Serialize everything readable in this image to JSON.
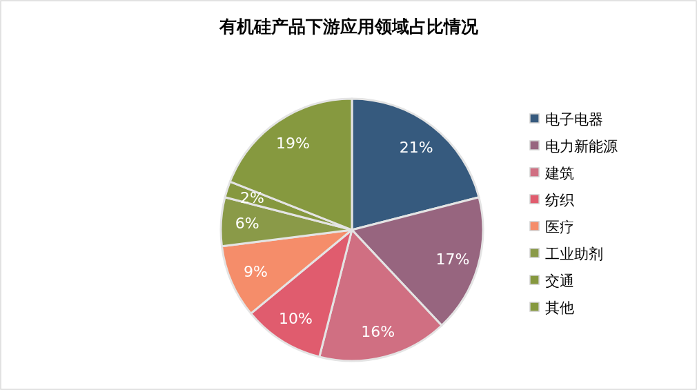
{
  "chart_data": {
    "type": "pie",
    "title": "有机硅产品下游应用领域占比情况",
    "categories": [
      "电子电器",
      "电力新能源",
      "建筑",
      "纺织",
      "医疗",
      "工业助剂",
      "交通",
      "其他"
    ],
    "values": [
      21,
      17,
      16,
      10,
      9,
      6,
      2,
      19
    ],
    "colors": [
      "#365a7e",
      "#97657f",
      "#d06f82",
      "#e05c6e",
      "#f58d6a",
      "#8a9a48",
      "#86983f",
      "#86993f"
    ],
    "value_labels": [
      "21%",
      "17%",
      "16%",
      "10%",
      "9%",
      "6%",
      "2%",
      "19%"
    ],
    "legend": "right"
  }
}
